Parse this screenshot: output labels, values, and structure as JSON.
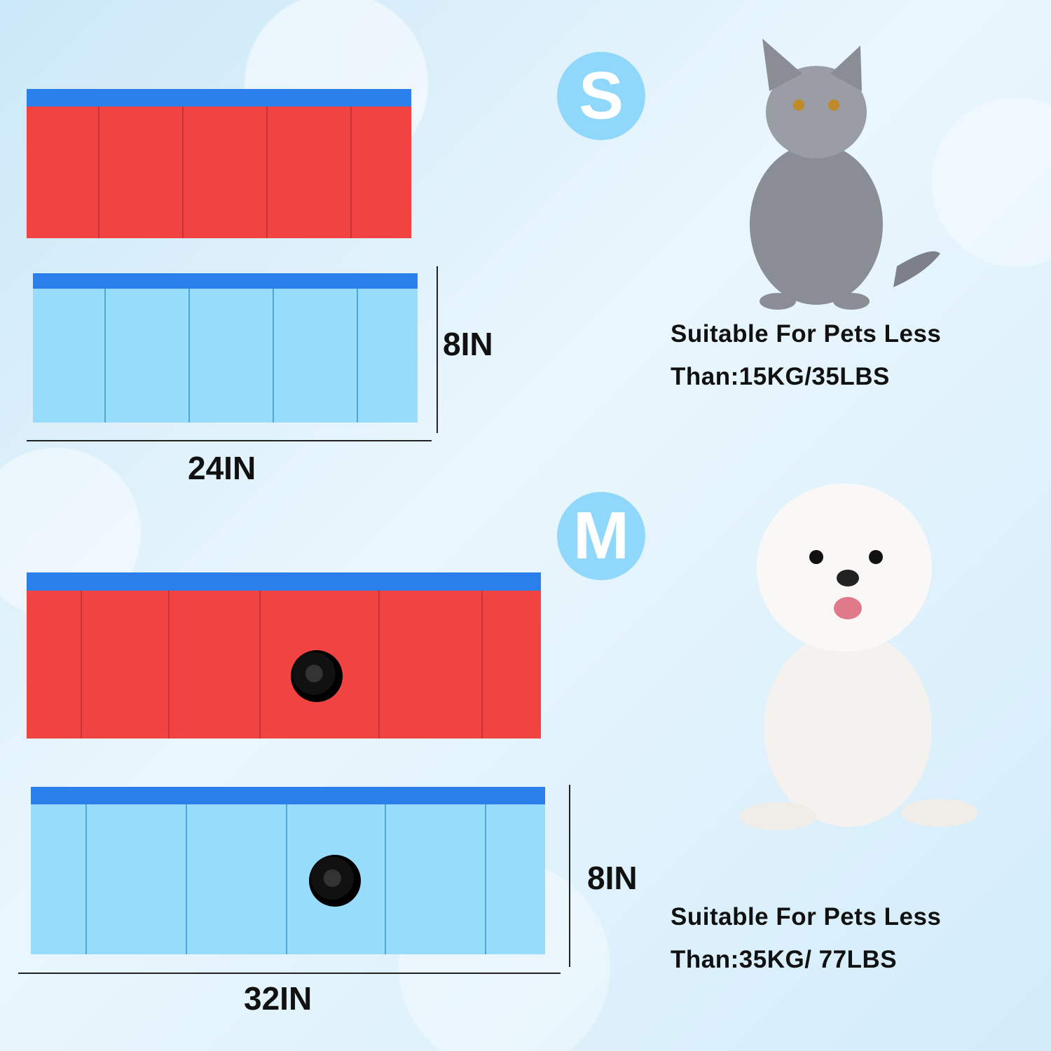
{
  "small": {
    "badge": "S",
    "height_label": "8IN",
    "width_label": "24IN",
    "desc_line1": "Suitable For Pets Less",
    "desc_line2": "Than:15KG/35LBS",
    "pet_icon": "cat-photo"
  },
  "medium": {
    "badge": "M",
    "height_label": "8IN",
    "width_label": "32IN",
    "desc_line1": "Suitable For Pets Less",
    "desc_line2": "Than:35KG/ 77LBS",
    "pet_icon": "dog-photo"
  },
  "colors": {
    "rim": "#2b7fea",
    "red_panel": "#f24343",
    "blue_panel": "#98dcfb",
    "badge": "#8fd8fb"
  }
}
